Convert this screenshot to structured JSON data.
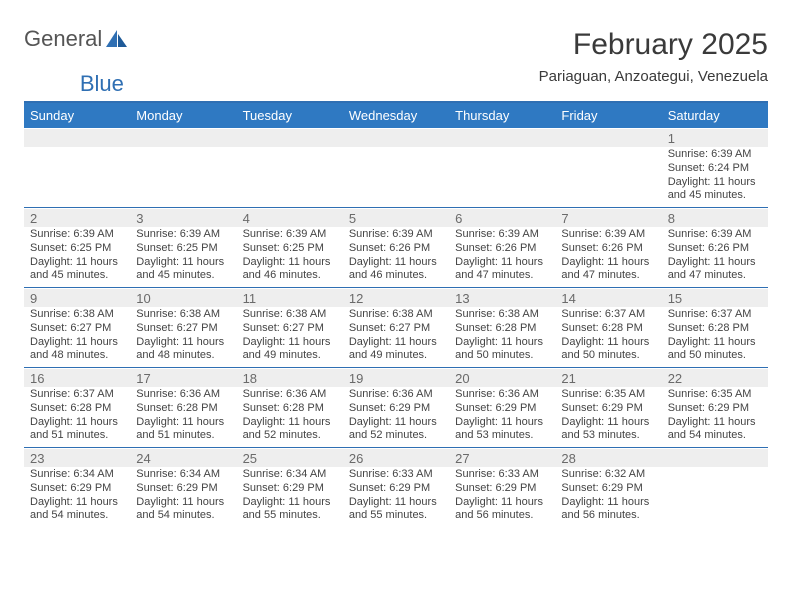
{
  "brand": {
    "word1": "General",
    "word2": "Blue"
  },
  "title": {
    "month": "February 2025",
    "location": "Pariaguan, Anzoategui, Venezuela"
  },
  "colors": {
    "header_bg": "#2f79c2",
    "header_text": "#ffffff",
    "daynum_bg": "#eeeeee",
    "daynum_text": "#6a6a6a",
    "rule": "#2f6fb3",
    "info_text": "#444444",
    "brand_blue": "#2f6fb3",
    "brand_gray": "#555555"
  },
  "weekdays": [
    "Sunday",
    "Monday",
    "Tuesday",
    "Wednesday",
    "Thursday",
    "Friday",
    "Saturday"
  ],
  "weeks": [
    [
      {
        "day": "",
        "sunrise": "",
        "sunset": "",
        "daylight": ""
      },
      {
        "day": "",
        "sunrise": "",
        "sunset": "",
        "daylight": ""
      },
      {
        "day": "",
        "sunrise": "",
        "sunset": "",
        "daylight": ""
      },
      {
        "day": "",
        "sunrise": "",
        "sunset": "",
        "daylight": ""
      },
      {
        "day": "",
        "sunrise": "",
        "sunset": "",
        "daylight": ""
      },
      {
        "day": "",
        "sunrise": "",
        "sunset": "",
        "daylight": ""
      },
      {
        "day": "1",
        "sunrise": "Sunrise: 6:39 AM",
        "sunset": "Sunset: 6:24 PM",
        "daylight": "Daylight: 11 hours and 45 minutes."
      }
    ],
    [
      {
        "day": "2",
        "sunrise": "Sunrise: 6:39 AM",
        "sunset": "Sunset: 6:25 PM",
        "daylight": "Daylight: 11 hours and 45 minutes."
      },
      {
        "day": "3",
        "sunrise": "Sunrise: 6:39 AM",
        "sunset": "Sunset: 6:25 PM",
        "daylight": "Daylight: 11 hours and 45 minutes."
      },
      {
        "day": "4",
        "sunrise": "Sunrise: 6:39 AM",
        "sunset": "Sunset: 6:25 PM",
        "daylight": "Daylight: 11 hours and 46 minutes."
      },
      {
        "day": "5",
        "sunrise": "Sunrise: 6:39 AM",
        "sunset": "Sunset: 6:26 PM",
        "daylight": "Daylight: 11 hours and 46 minutes."
      },
      {
        "day": "6",
        "sunrise": "Sunrise: 6:39 AM",
        "sunset": "Sunset: 6:26 PM",
        "daylight": "Daylight: 11 hours and 47 minutes."
      },
      {
        "day": "7",
        "sunrise": "Sunrise: 6:39 AM",
        "sunset": "Sunset: 6:26 PM",
        "daylight": "Daylight: 11 hours and 47 minutes."
      },
      {
        "day": "8",
        "sunrise": "Sunrise: 6:39 AM",
        "sunset": "Sunset: 6:26 PM",
        "daylight": "Daylight: 11 hours and 47 minutes."
      }
    ],
    [
      {
        "day": "9",
        "sunrise": "Sunrise: 6:38 AM",
        "sunset": "Sunset: 6:27 PM",
        "daylight": "Daylight: 11 hours and 48 minutes."
      },
      {
        "day": "10",
        "sunrise": "Sunrise: 6:38 AM",
        "sunset": "Sunset: 6:27 PM",
        "daylight": "Daylight: 11 hours and 48 minutes."
      },
      {
        "day": "11",
        "sunrise": "Sunrise: 6:38 AM",
        "sunset": "Sunset: 6:27 PM",
        "daylight": "Daylight: 11 hours and 49 minutes."
      },
      {
        "day": "12",
        "sunrise": "Sunrise: 6:38 AM",
        "sunset": "Sunset: 6:27 PM",
        "daylight": "Daylight: 11 hours and 49 minutes."
      },
      {
        "day": "13",
        "sunrise": "Sunrise: 6:38 AM",
        "sunset": "Sunset: 6:28 PM",
        "daylight": "Daylight: 11 hours and 50 minutes."
      },
      {
        "day": "14",
        "sunrise": "Sunrise: 6:37 AM",
        "sunset": "Sunset: 6:28 PM",
        "daylight": "Daylight: 11 hours and 50 minutes."
      },
      {
        "day": "15",
        "sunrise": "Sunrise: 6:37 AM",
        "sunset": "Sunset: 6:28 PM",
        "daylight": "Daylight: 11 hours and 50 minutes."
      }
    ],
    [
      {
        "day": "16",
        "sunrise": "Sunrise: 6:37 AM",
        "sunset": "Sunset: 6:28 PM",
        "daylight": "Daylight: 11 hours and 51 minutes."
      },
      {
        "day": "17",
        "sunrise": "Sunrise: 6:36 AM",
        "sunset": "Sunset: 6:28 PM",
        "daylight": "Daylight: 11 hours and 51 minutes."
      },
      {
        "day": "18",
        "sunrise": "Sunrise: 6:36 AM",
        "sunset": "Sunset: 6:28 PM",
        "daylight": "Daylight: 11 hours and 52 minutes."
      },
      {
        "day": "19",
        "sunrise": "Sunrise: 6:36 AM",
        "sunset": "Sunset: 6:29 PM",
        "daylight": "Daylight: 11 hours and 52 minutes."
      },
      {
        "day": "20",
        "sunrise": "Sunrise: 6:36 AM",
        "sunset": "Sunset: 6:29 PM",
        "daylight": "Daylight: 11 hours and 53 minutes."
      },
      {
        "day": "21",
        "sunrise": "Sunrise: 6:35 AM",
        "sunset": "Sunset: 6:29 PM",
        "daylight": "Daylight: 11 hours and 53 minutes."
      },
      {
        "day": "22",
        "sunrise": "Sunrise: 6:35 AM",
        "sunset": "Sunset: 6:29 PM",
        "daylight": "Daylight: 11 hours and 54 minutes."
      }
    ],
    [
      {
        "day": "23",
        "sunrise": "Sunrise: 6:34 AM",
        "sunset": "Sunset: 6:29 PM",
        "daylight": "Daylight: 11 hours and 54 minutes."
      },
      {
        "day": "24",
        "sunrise": "Sunrise: 6:34 AM",
        "sunset": "Sunset: 6:29 PM",
        "daylight": "Daylight: 11 hours and 54 minutes."
      },
      {
        "day": "25",
        "sunrise": "Sunrise: 6:34 AM",
        "sunset": "Sunset: 6:29 PM",
        "daylight": "Daylight: 11 hours and 55 minutes."
      },
      {
        "day": "26",
        "sunrise": "Sunrise: 6:33 AM",
        "sunset": "Sunset: 6:29 PM",
        "daylight": "Daylight: 11 hours and 55 minutes."
      },
      {
        "day": "27",
        "sunrise": "Sunrise: 6:33 AM",
        "sunset": "Sunset: 6:29 PM",
        "daylight": "Daylight: 11 hours and 56 minutes."
      },
      {
        "day": "28",
        "sunrise": "Sunrise: 6:32 AM",
        "sunset": "Sunset: 6:29 PM",
        "daylight": "Daylight: 11 hours and 56 minutes."
      },
      {
        "day": "",
        "sunrise": "",
        "sunset": "",
        "daylight": ""
      }
    ]
  ]
}
